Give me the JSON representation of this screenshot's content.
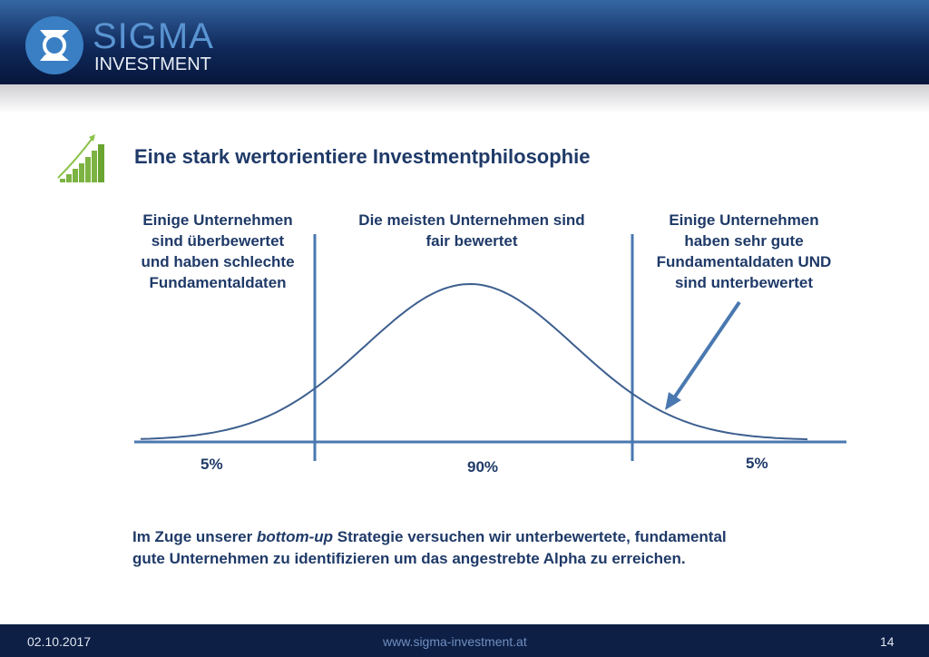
{
  "header": {
    "logo_top": "SIGMA",
    "logo_bottom": "INVESTMENT"
  },
  "title": "Eine stark wertorientiere Investmentphilosophie",
  "labels": {
    "left": [
      "Einige Unternehmen",
      "sind überbewertet",
      "und haben schlechte",
      "Fundamentaldaten"
    ],
    "middle": [
      "Die meisten Unternehmen sind",
      "fair bewertet"
    ],
    "right": [
      "Einige Unternehmen",
      "haben sehr gute",
      "Fundamentaldaten UND",
      "sind unterbewertet"
    ]
  },
  "percentages": {
    "left": "5%",
    "middle": "90%",
    "right": "5%"
  },
  "bottom_text": {
    "before": "Im Zuge unserer ",
    "emphasis": "bottom-up",
    "after": " Strategie versuchen wir unterbewertete, fundamental",
    "line2": "gute Unternehmen zu identifizieren um das angestrebte Alpha zu erreichen."
  },
  "footer": {
    "date": "02.10.2017",
    "url": "www.sigma-investment.at",
    "page": "14"
  },
  "colors": {
    "text": "#1f3a68",
    "diagram": "#4a78b0",
    "header": "#102a5c"
  },
  "icons": [
    "growth-chart-icon",
    "sigma-logo"
  ]
}
